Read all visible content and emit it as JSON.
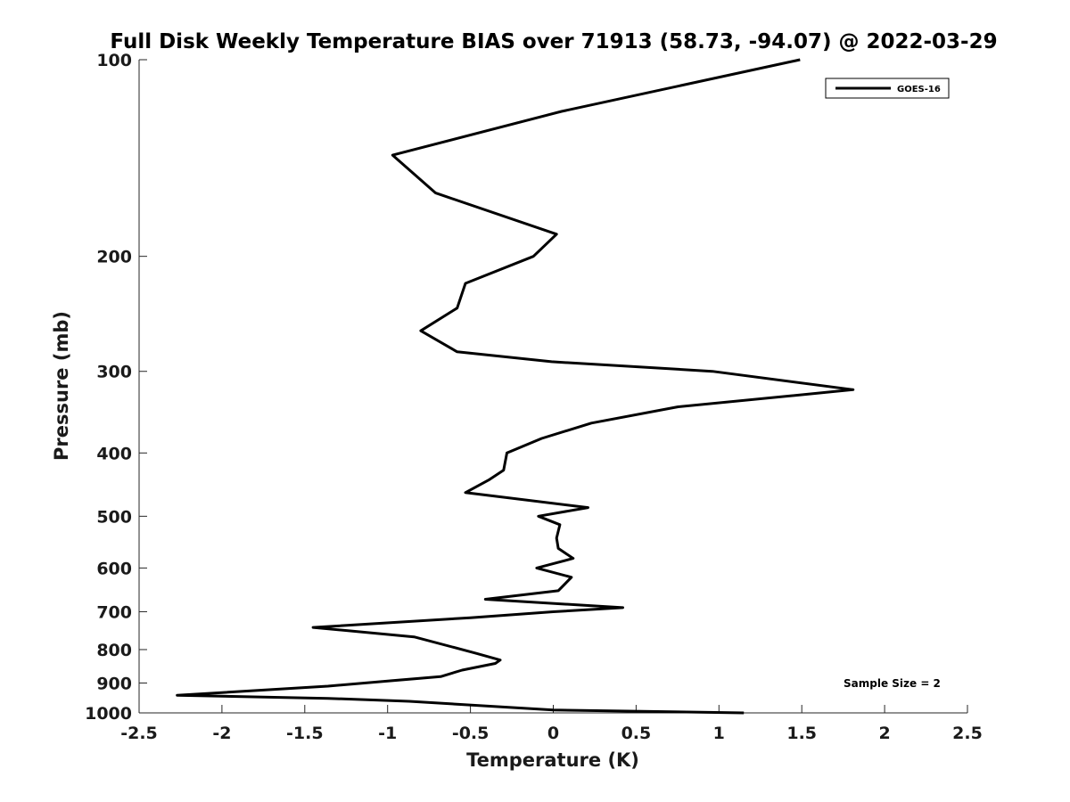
{
  "chart_data": {
    "type": "line",
    "title": "Full Disk Weekly Temperature BIAS over 71913 (58.73, -94.07) @ 2022-03-29",
    "xlabel": "Temperature (K)",
    "ylabel": "Pressure (mb)",
    "xlim": [
      -2.5,
      2.5
    ],
    "ylim": [
      100,
      1000
    ],
    "y_scale": "log",
    "y_reversed": true,
    "x_ticks": [
      "-2.5",
      "-2",
      "-1.5",
      "-1",
      "-0.5",
      "0",
      "0.5",
      "1",
      "1.5",
      "2",
      "2.5"
    ],
    "x_tick_values": [
      -2.5,
      -2,
      -1.5,
      -1,
      -0.5,
      0,
      0.5,
      1,
      1.5,
      2,
      2.5
    ],
    "y_ticks": [
      "100",
      "200",
      "300",
      "400",
      "500",
      "600",
      "700",
      "800",
      "900",
      "1000"
    ],
    "y_tick_values": [
      100,
      200,
      300,
      400,
      500,
      600,
      700,
      800,
      900,
      1000
    ],
    "grid": false,
    "legend_position": "top-right",
    "annotation": "Sample Size = 2",
    "series": [
      {
        "name": "GOES-16",
        "color": "#000000",
        "x": [
          1.49,
          0.05,
          -0.97,
          -0.71,
          0.02,
          -0.12,
          -0.53,
          -0.58,
          -0.8,
          -0.58,
          -0.01,
          0.96,
          1.81,
          0.75,
          0.23,
          -0.07,
          -0.28,
          -0.3,
          -0.39,
          -0.53,
          0.21,
          -0.09,
          0.04,
          0.02,
          0.03,
          0.12,
          -0.1,
          0.11,
          0.03,
          -0.41,
          0.42,
          0.0,
          -0.5,
          -1.45,
          -0.84,
          -0.47,
          -0.32,
          -0.35,
          -0.55,
          -0.68,
          -1.03,
          -1.36,
          -2.27,
          -1.36,
          -0.87,
          0.0,
          1.15
        ],
        "y": [
          100,
          120,
          140,
          160,
          185,
          200,
          220,
          240,
          260,
          280,
          290,
          300,
          320,
          340,
          360,
          380,
          400,
          425,
          440,
          460,
          485,
          500,
          515,
          540,
          560,
          580,
          600,
          620,
          650,
          670,
          690,
          700,
          715,
          740,
          765,
          810,
          830,
          840,
          860,
          880,
          895,
          910,
          940,
          950,
          960,
          990,
          1000
        ]
      }
    ]
  }
}
